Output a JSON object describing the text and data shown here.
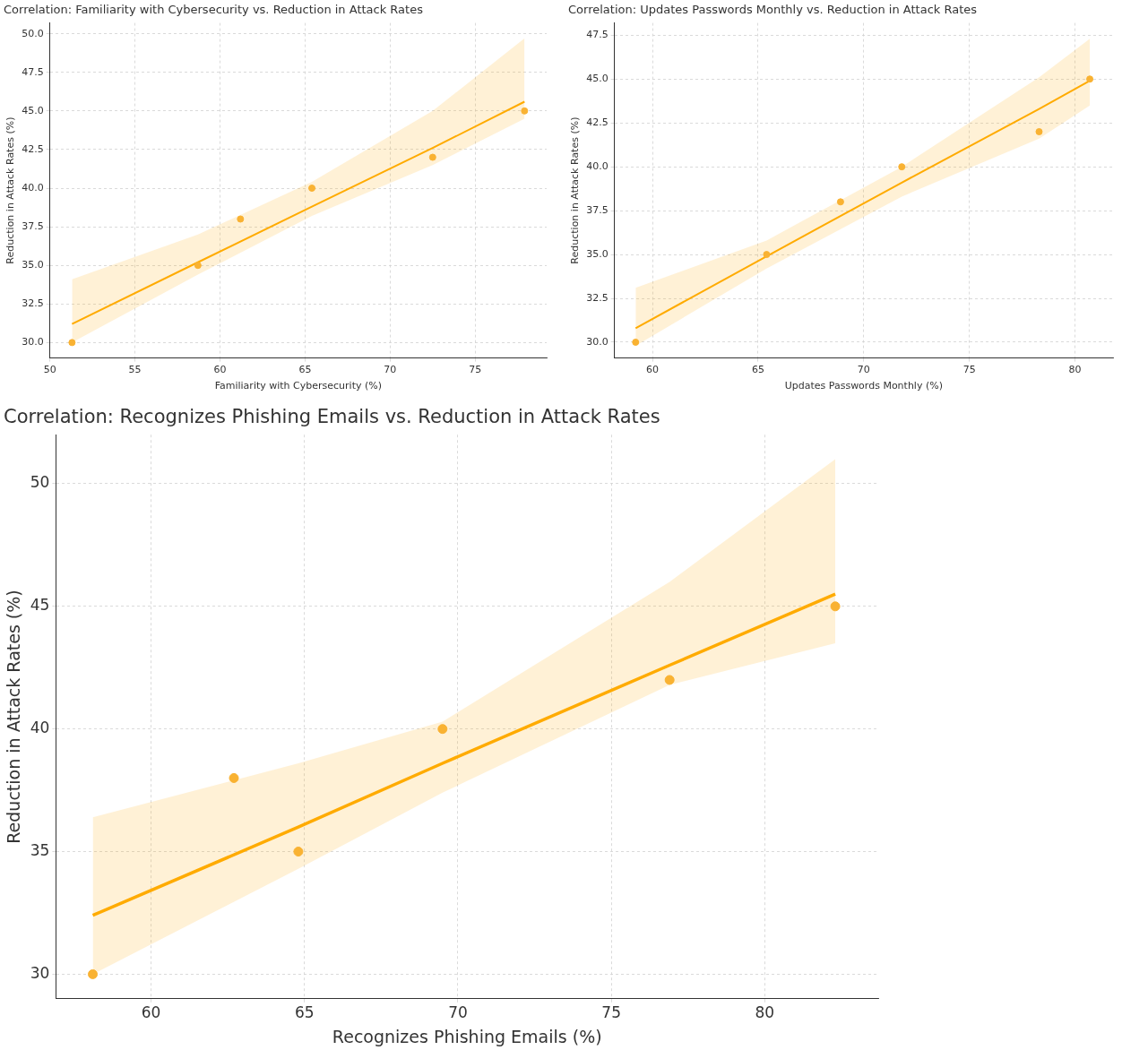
{
  "chart_data": [
    {
      "type": "scatter",
      "title": "Correlation: Familiarity with Cybersecurity vs. Reduction in Attack Rates",
      "xlabel": "Familiarity with Cybersecurity (%)",
      "ylabel": "Reduction in Attack Rates (%)",
      "xlim": [
        50,
        79.2
      ],
      "ylim": [
        29,
        50.7
      ],
      "xticks": [
        50,
        55,
        60,
        65,
        70,
        75
      ],
      "yticks": [
        {
          "value": 30,
          "label": "30.0"
        },
        32.5,
        {
          "value": 35,
          "label": "35.0"
        },
        37.5,
        {
          "value": 40,
          "label": "40.0"
        },
        42.5,
        {
          "value": 45,
          "label": "45.0"
        },
        47.5,
        {
          "value": 50,
          "label": "50.0"
        }
      ],
      "grid": true,
      "series": [
        {
          "type": "scatter",
          "marker": "circle",
          "color": "#f9b232",
          "x": [
            51.3,
            58.7,
            61.2,
            65.4,
            72.5,
            77.9
          ],
          "values": [
            30,
            35,
            38,
            40,
            42,
            45
          ]
        },
        {
          "type": "line",
          "color": "#ffab00",
          "x": [
            51.3,
            58.7,
            65.4,
            72.5,
            77.9
          ],
          "values": [
            31.2,
            35.2,
            38.8,
            42.6,
            45.6
          ],
          "lower": [
            30.0,
            34.4,
            38.2,
            41.5,
            44.5
          ],
          "upper": [
            34.1,
            37.0,
            40.4,
            45.0,
            49.7
          ]
        }
      ]
    },
    {
      "type": "scatter",
      "title": "Correlation: Updates Passwords Monthly vs. Reduction in Attack Rates",
      "xlabel": "Updates Passwords Monthly (%)",
      "ylabel": "Reduction in Attack Rates (%)",
      "xlim": [
        58.2,
        81.8
      ],
      "ylim": [
        29.1,
        48.2
      ],
      "xticks": [
        60,
        65,
        70,
        75,
        80
      ],
      "yticks": [
        {
          "value": 30,
          "label": "30.0"
        },
        32.5,
        {
          "value": 35,
          "label": "35.0"
        },
        37.5,
        {
          "value": 40,
          "label": "40.0"
        },
        42.5,
        {
          "value": 45,
          "label": "45.0"
        },
        47.5
      ],
      "grid": true,
      "series": [
        {
          "type": "scatter",
          "marker": "circle",
          "color": "#f9b232",
          "x": [
            59.2,
            65.4,
            68.9,
            71.8,
            78.3,
            80.7
          ],
          "values": [
            30,
            35,
            38,
            40,
            42,
            45
          ]
        },
        {
          "type": "line",
          "color": "#ffab00",
          "x": [
            59.2,
            65.4,
            71.8,
            78.3,
            80.7
          ],
          "values": [
            30.8,
            34.9,
            39.1,
            43.3,
            44.9
          ],
          "lower": [
            29.8,
            34.2,
            38.3,
            41.6,
            43.5
          ],
          "upper": [
            33.1,
            35.8,
            40.0,
            45.1,
            47.3
          ]
        }
      ]
    },
    {
      "type": "scatter",
      "title": "Correlation: Recognizes Phishing Emails vs. Reduction in Attack Rates",
      "xlabel": "Recognizes Phishing Emails (%)",
      "ylabel": "Reduction in Attack Rates (%)",
      "xlim": [
        56.9,
        83.7
      ],
      "ylim": [
        29,
        52
      ],
      "xticks": [
        60,
        65,
        70,
        75,
        80
      ],
      "yticks": [
        30,
        35,
        40,
        45,
        50
      ],
      "grid": true,
      "series": [
        {
          "type": "scatter",
          "marker": "circle",
          "color": "#f9b232",
          "x": [
            58.1,
            62.7,
            64.8,
            69.5,
            76.9,
            82.3
          ],
          "values": [
            30,
            38,
            35,
            40,
            42,
            45
          ]
        },
        {
          "type": "line",
          "color": "#ffab00",
          "x": [
            58.1,
            64.8,
            69.5,
            76.9,
            82.3
          ],
          "values": [
            32.4,
            36.0,
            38.6,
            42.6,
            45.5
          ],
          "lower": [
            30.0,
            34.3,
            37.4,
            41.8,
            43.5
          ],
          "upper": [
            36.4,
            38.6,
            40.3,
            46.0,
            51.0
          ]
        }
      ]
    }
  ]
}
